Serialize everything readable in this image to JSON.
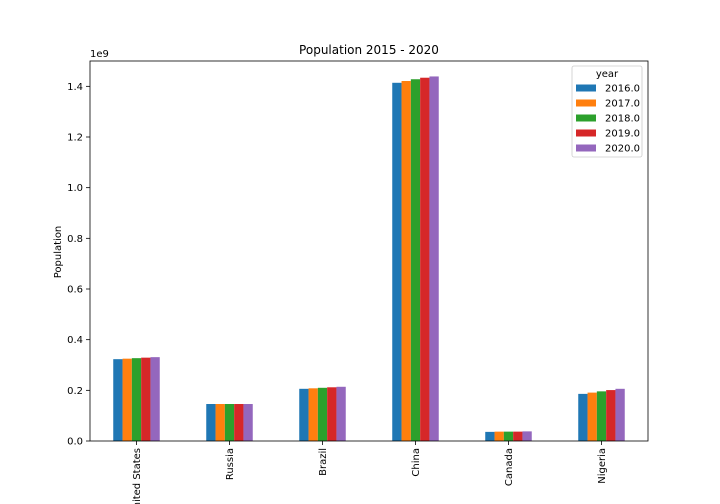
{
  "chart_data": {
    "type": "bar",
    "title": "Population 2015 - 2020",
    "xlabel": "",
    "ylabel": "Population",
    "y_scale_label": "1e9",
    "ylim": [
      0,
      1.5
    ],
    "y_ticks": [
      "0.0",
      "0.2",
      "0.4",
      "0.6",
      "0.8",
      "1.0",
      "1.2",
      "1.4"
    ],
    "categories": [
      "United States",
      "Russia",
      "Brazil",
      "China",
      "Canada",
      "Nigeria"
    ],
    "legend_title": "year",
    "legend_position": "top-right",
    "grid": false,
    "series": [
      {
        "name": "2016.0",
        "color": "#1f77b4",
        "values": [
          0.323,
          0.146,
          0.206,
          1.414,
          0.036,
          0.186
        ]
      },
      {
        "name": "2017.0",
        "color": "#ff7f0e",
        "values": [
          0.325,
          0.146,
          0.208,
          1.421,
          0.037,
          0.191
        ]
      },
      {
        "name": "2018.0",
        "color": "#2ca02c",
        "values": [
          0.327,
          0.146,
          0.21,
          1.428,
          0.037,
          0.196
        ]
      },
      {
        "name": "2019.0",
        "color": "#d62728",
        "values": [
          0.329,
          0.146,
          0.212,
          1.434,
          0.037,
          0.201
        ]
      },
      {
        "name": "2020.0",
        "color": "#9467bd",
        "values": [
          0.331,
          0.146,
          0.214,
          1.439,
          0.038,
          0.206
        ]
      }
    ]
  }
}
